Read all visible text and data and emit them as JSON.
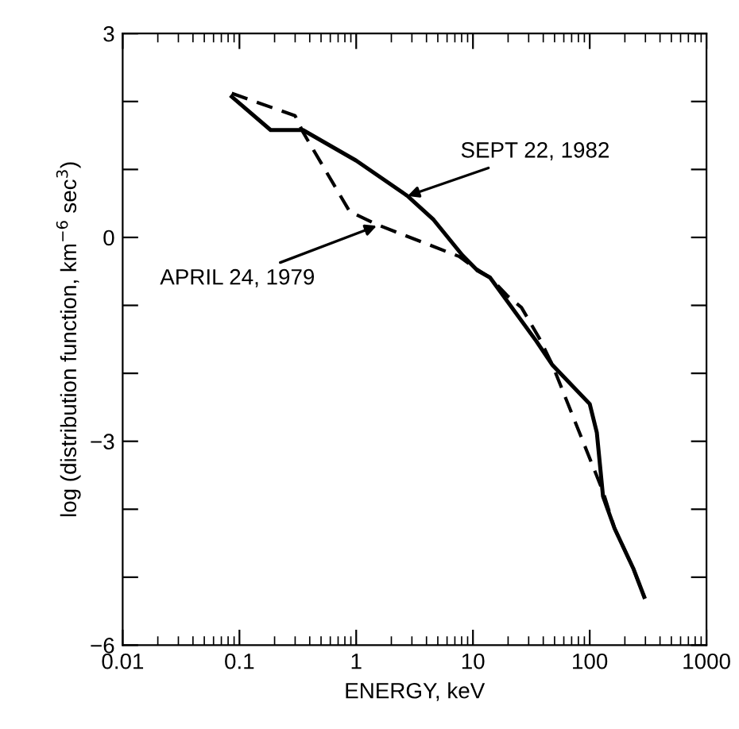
{
  "chart_data": {
    "type": "line",
    "xlabel": "ENERGY, keV",
    "ylabel": "log (distribution function, km$^{−6}$ sec$^{3}$)",
    "log": "x",
    "xlim": [
      0.01,
      1000
    ],
    "xticks": [
      0.01,
      0.1,
      1,
      10,
      100,
      1000
    ],
    "ylim": [
      -6,
      3
    ],
    "yticks": [
      -6,
      {
        "value": -5,
        "label": null
      },
      {
        "value": -4,
        "label": null
      },
      -3,
      {
        "value": -2,
        "label": null
      },
      {
        "value": -1,
        "label": null
      },
      0,
      {
        "value": 1,
        "label": null
      },
      {
        "value": 2,
        "label": null
      },
      3
    ],
    "marker": "none",
    "series": [
      {
        "color": "#000000",
        "line_style": "solid",
        "x": [
          0.086,
          0.185,
          0.35,
          1.0,
          2.75,
          4.6,
          8.1,
          11,
          14,
          35,
          48,
          100,
          115,
          130,
          163,
          236,
          293
        ],
        "values": [
          2.07,
          1.58,
          1.58,
          1.13,
          0.61,
          0.26,
          -0.26,
          -0.49,
          -0.59,
          -1.53,
          -1.88,
          -2.45,
          -2.87,
          -3.81,
          -4.28,
          -4.87,
          -5.29
        ]
      },
      {
        "color": "#000000",
        "line_style": "dashed",
        "x": [
          0.086,
          0.3,
          0.35,
          0.88,
          1.5,
          7.6,
          10.4,
          14,
          20,
          26,
          37.5,
          48,
          130,
          163,
          236,
          293
        ],
        "values": [
          2.12,
          1.79,
          1.55,
          0.38,
          0.19,
          -0.28,
          -0.45,
          -0.59,
          -0.87,
          -1.03,
          -1.5,
          -1.88,
          -3.74,
          -4.28,
          -4.87,
          -5.29
        ]
      }
    ],
    "annotations": [
      {
        "text": "SEPT 22, 1982",
        "x": 2.75,
        "y": 0.61
      },
      {
        "text": "APRIL 24, 1979",
        "x": 1.5,
        "y": 0.17
      }
    ]
  }
}
